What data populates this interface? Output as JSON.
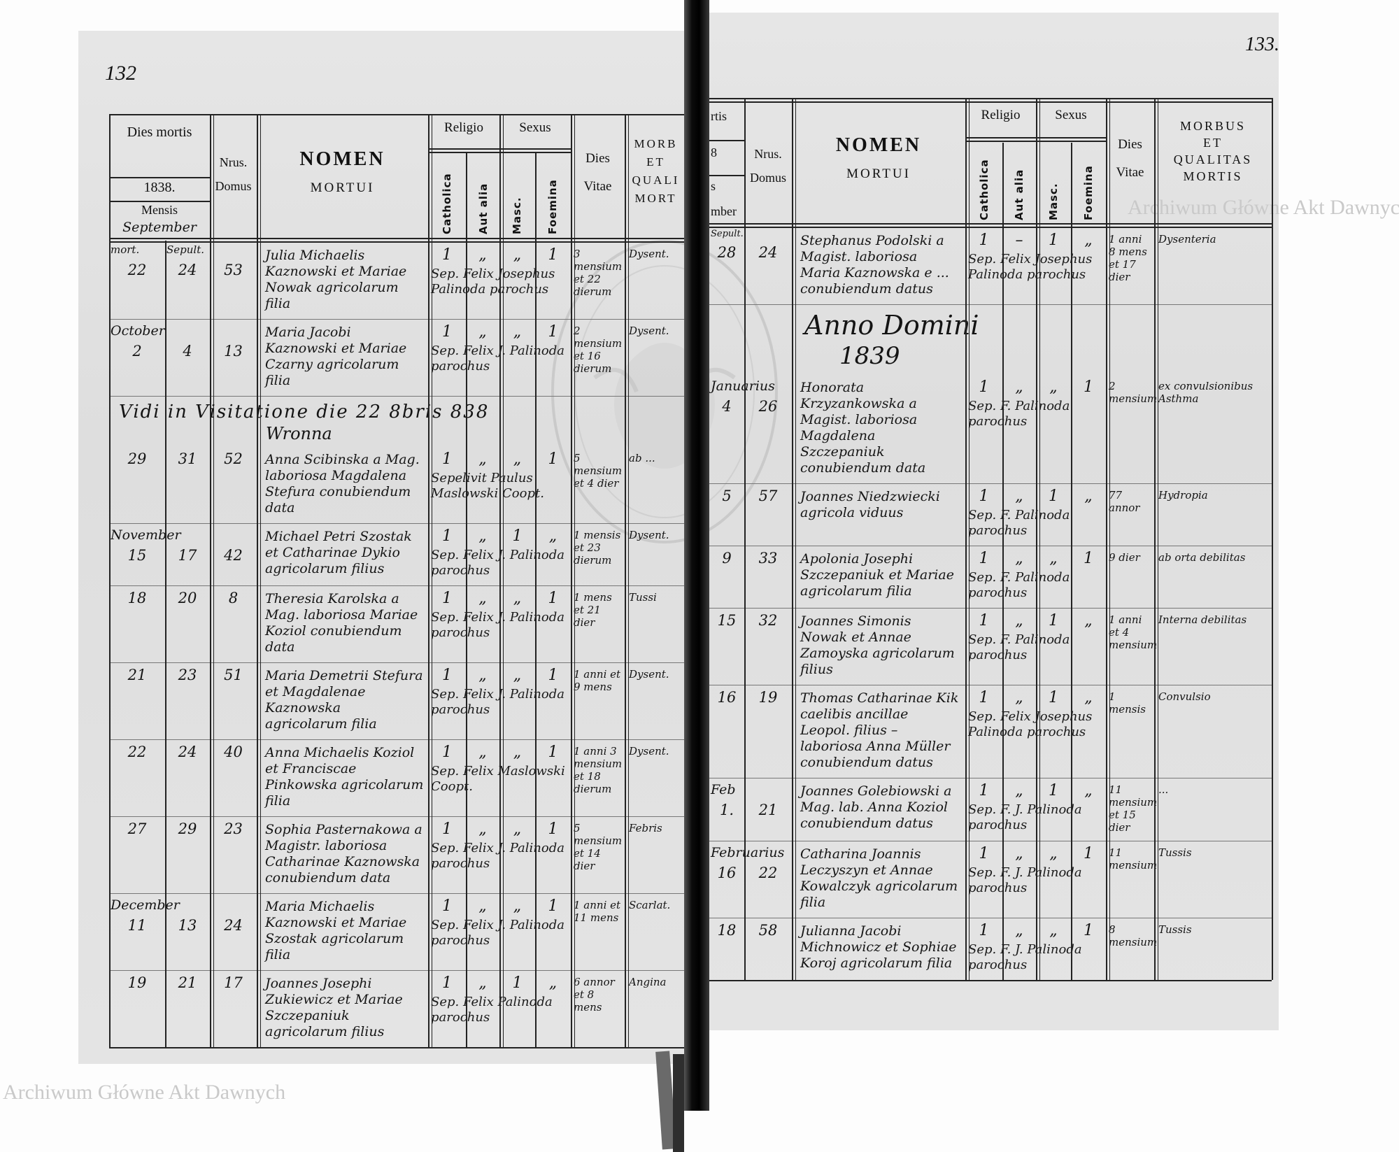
{
  "pages": {
    "left_number": "132",
    "right_number": "133."
  },
  "watermark": "Archiwum Główne Akt Dawnych",
  "stamp_text": "Archiwum Główne Akt Dawnych",
  "header": {
    "dies_mortis": "Dies mortis",
    "year": "1838.",
    "mensis": "Mensis",
    "month": "September",
    "mort": "mort.",
    "sepult": "Sepult.",
    "nrus": "Nrus.",
    "domus": "Domus",
    "nomen": "NOMEN",
    "mortui": "MORTUI",
    "religio": "Religio",
    "catholica": "Catholica",
    "aut_alia": "Aut alia",
    "sexus": "Sexus",
    "masc": "Masc.",
    "foemina": "Foemina",
    "dies": "Dies",
    "vitae": "Vitae",
    "morbus_left": [
      "MORB",
      "ET",
      "QUALI",
      "MORT"
    ],
    "morbus_right": [
      "MORBUS",
      "ET",
      "QUALITAS",
      "MORTIS"
    ],
    "right_dies_mortis_fragments": [
      "rtis",
      "8",
      "s",
      "mber"
    ],
    "right_sepult_fragment": "Sepult."
  },
  "notes": {
    "visitation": "Vidi in Visitatione die 22 8bris 838",
    "signature": "Wronna"
  },
  "anno_domini": {
    "label": "Anno Domini",
    "year": "1839"
  },
  "left_rows": [
    {
      "month": "",
      "mort": "22",
      "sepult": "24",
      "domus": "53",
      "name": "Julia Michaelis Kaznowski et Mariae Nowak agricolarum filia",
      "catholica": "1",
      "aut_alia": "„",
      "masc": "„",
      "foemina": "1",
      "vitae": "3 mensium et 22 dierum",
      "morbus": "Dysent.",
      "burial": "Sep. Felix Josephus Palinoda parochus"
    },
    {
      "month": "October",
      "mort": "2",
      "sepult": "4",
      "domus": "13",
      "name": "Maria Jacobi Kaznowski et Mariae Czarny agricolarum filia",
      "catholica": "1",
      "aut_alia": "„",
      "masc": "„",
      "foemina": "1",
      "vitae": "2 mensium et 16 dierum",
      "morbus": "Dysent.",
      "burial": "Sep. Felix J. Palinoda parochus"
    },
    {
      "month": "",
      "mort": "29",
      "sepult": "31",
      "domus": "52",
      "name": "Anna Scibinska a Mag. laboriosa Magdalena Stefura conubiendum data",
      "catholica": "1",
      "aut_alia": "„",
      "masc": "„",
      "foemina": "1",
      "vitae": "5 mensium et 4 dier",
      "morbus": "ab ...",
      "burial": "Sepelivit Paulus Maslowski Coopt."
    },
    {
      "month": "November",
      "mort": "15",
      "sepult": "17",
      "domus": "42",
      "name": "Michael Petri Szostak et Catharinae Dykio agricolarum filius",
      "catholica": "1",
      "aut_alia": "„",
      "masc": "1",
      "foemina": "„",
      "vitae": "1 mensis et 23 dierum",
      "morbus": "Dysent.",
      "burial": "Sep. Felix J. Palinoda parochus"
    },
    {
      "month": "",
      "mort": "18",
      "sepult": "20",
      "domus": "8",
      "name": "Theresia Karolska a Mag. laboriosa Mariae Koziol conubiendum data",
      "catholica": "1",
      "aut_alia": "„",
      "masc": "„",
      "foemina": "1",
      "vitae": "1 mens et 21 dier",
      "morbus": "Tussi",
      "burial": "Sep. Felix J. Palinoda parochus"
    },
    {
      "month": "",
      "mort": "21",
      "sepult": "23",
      "domus": "51",
      "name": "Maria Demetrii Stefura et Magdalenae Kaznowska agricolarum filia",
      "catholica": "1",
      "aut_alia": "„",
      "masc": "„",
      "foemina": "1",
      "vitae": "1 anni et 9 mens",
      "morbus": "Dysent.",
      "burial": "Sep. Felix J. Palinoda parochus"
    },
    {
      "month": "",
      "mort": "22",
      "sepult": "24",
      "domus": "40",
      "name": "Anna Michaelis Koziol et Franciscae Pinkowska agricolarum filia",
      "catholica": "1",
      "aut_alia": "„",
      "masc": "„",
      "foemina": "1",
      "vitae": "1 anni 3 mensium et 18 dierum",
      "morbus": "Dysent.",
      "burial": "Sep. Felix Maslowski Coopt."
    },
    {
      "month": "",
      "mort": "27",
      "sepult": "29",
      "domus": "23",
      "name": "Sophia Pasternakowa a Magistr. laboriosa Catharinae Kaznowska conubiendum data",
      "catholica": "1",
      "aut_alia": "„",
      "masc": "„",
      "foemina": "1",
      "vitae": "5 mensium et 14 dier",
      "morbus": "Febris",
      "burial": "Sep. Felix J. Palinoda parochus"
    },
    {
      "month": "December",
      "mort": "11",
      "sepult": "13",
      "domus": "24",
      "name": "Maria Michaelis Kaznowski et Mariae Szostak agricolarum filia",
      "catholica": "1",
      "aut_alia": "„",
      "masc": "„",
      "foemina": "1",
      "vitae": "1 anni et 11 mens",
      "morbus": "Scarlat.",
      "burial": "Sep. Felix J. Palinoda parochus"
    },
    {
      "month": "",
      "mort": "19",
      "sepult": "21",
      "domus": "17",
      "name": "Joannes Josephi Zukiewicz et Mariae Szczepaniuk agricolarum filius",
      "catholica": "1",
      "aut_alia": "„",
      "masc": "1",
      "foemina": "„",
      "vitae": "6 annor et 8 mens",
      "morbus": "Angina",
      "burial": "Sep. Felix Palinoda parochus"
    }
  ],
  "right_rows": [
    {
      "month": "",
      "mort": "28",
      "sepult": "",
      "domus": "24",
      "name": "Stephanus Podolski a Magist. laboriosa Maria Kaznowska e ... conubiendum datus",
      "catholica": "1",
      "aut_alia": "–",
      "masc": "1",
      "foemina": "„",
      "vitae": "1 anni 8 mens et 17 dier",
      "morbus": "Dysenteria",
      "burial": "Sep. Felix Josephus Palinoda parochus"
    },
    {
      "month": "Januarius",
      "mort": "4",
      "sepult": "",
      "domus": "26",
      "name": "Honorata Krzyzankowska a Magist. laboriosa Magdalena Szczepaniuk conubiendum data",
      "catholica": "1",
      "aut_alia": "„",
      "masc": "„",
      "foemina": "1",
      "vitae": "2 mensium",
      "morbus": "ex convulsionibus Asthma",
      "burial": "Sep. F. Palinoda parochus"
    },
    {
      "month": "",
      "mort": "5",
      "sepult": "",
      "domus": "57",
      "name": "Joannes Niedzwiecki agricola viduus",
      "catholica": "1",
      "aut_alia": "„",
      "masc": "1",
      "foemina": "„",
      "vitae": "77 annor",
      "morbus": "Hydropia",
      "burial": "Sep. F. Palinoda parochus"
    },
    {
      "month": "",
      "mort": "9",
      "sepult": "",
      "domus": "33",
      "name": "Apolonia Josephi Szczepaniuk et Mariae agricolarum filia",
      "catholica": "1",
      "aut_alia": "„",
      "masc": "„",
      "foemina": "1",
      "vitae": "9 dier",
      "morbus": "ab orta debilitas",
      "burial": "Sep. F. Palinoda parochus"
    },
    {
      "month": "",
      "mort": "15",
      "sepult": "",
      "domus": "32",
      "name": "Joannes Simonis Nowak et Annae Zamoyska agricolarum filius",
      "catholica": "1",
      "aut_alia": "„",
      "masc": "1",
      "foemina": "„",
      "vitae": "1 anni et 4 mensium",
      "morbus": "Interna debilitas",
      "burial": "Sep. F. Palinoda parochus"
    },
    {
      "month": "",
      "mort": "16",
      "sepult": "",
      "domus": "19",
      "name": "Thomas Catharinae Kik caelibis ancillae Leopol. filius – laboriosa Anna Müller conubiendum datus",
      "catholica": "1",
      "aut_alia": "„",
      "masc": "1",
      "foemina": "„",
      "vitae": "1 mensis",
      "morbus": "Convulsio",
      "burial": "Sep. Felix Josephus Palinoda parochus"
    },
    {
      "month": "Feb",
      "mort": "1.",
      "sepult": "",
      "domus": "21",
      "name": "Joannes Golebiowski a Mag. lab. Anna Koziol conubiendum datus",
      "catholica": "1",
      "aut_alia": "„",
      "masc": "1",
      "foemina": "„",
      "vitae": "11 mensium et 15 dier",
      "morbus": "...",
      "burial": "Sep. F. J. Palinoda parochus"
    },
    {
      "month": "Februarius",
      "mort": "16",
      "sepult": "",
      "domus": "22",
      "name": "Catharina Joannis Leczyszyn et Annae Kowalczyk agricolarum filia",
      "catholica": "1",
      "aut_alia": "„",
      "masc": "„",
      "foemina": "1",
      "vitae": "11 mensium",
      "morbus": "Tussis",
      "burial": "Sep. F. J. Palinoda parochus"
    },
    {
      "month": "",
      "mort": "18",
      "sepult": "",
      "domus": "58",
      "name": "Julianna Jacobi Michnowicz et Sophiae Koroj agricolarum filia",
      "catholica": "1",
      "aut_alia": "„",
      "masc": "„",
      "foemina": "1",
      "vitae": "8 mensium",
      "morbus": "Tussis",
      "burial": "Sep. F. J. Palinoda parochus"
    }
  ]
}
